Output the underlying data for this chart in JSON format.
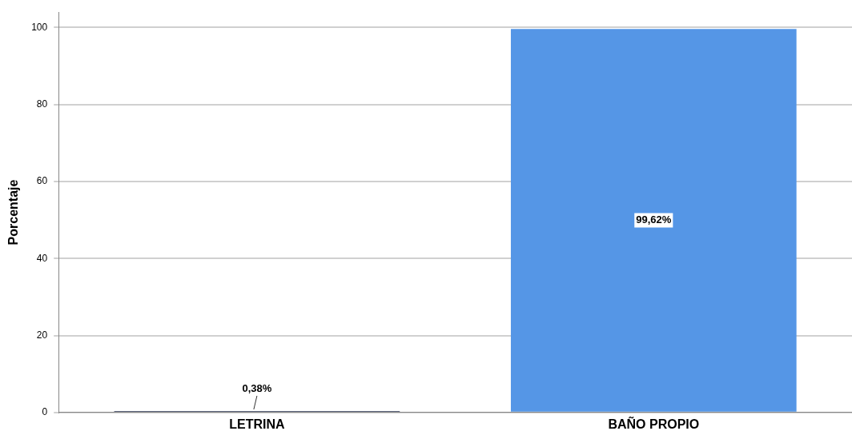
{
  "chart_data": {
    "type": "bar",
    "ylabel": "Porcentaje",
    "categories": [
      "LETRINA",
      "BAÑO PROPIO"
    ],
    "values": [
      0.38,
      99.62
    ],
    "colors": [
      "#2b3553",
      "#5596e6"
    ],
    "value_labels": [
      "0,38%",
      "99,62%"
    ],
    "ylim": [
      0,
      104
    ],
    "yticks": [
      0,
      20,
      40,
      60,
      80,
      100
    ],
    "grid": "y",
    "legend": false
  }
}
